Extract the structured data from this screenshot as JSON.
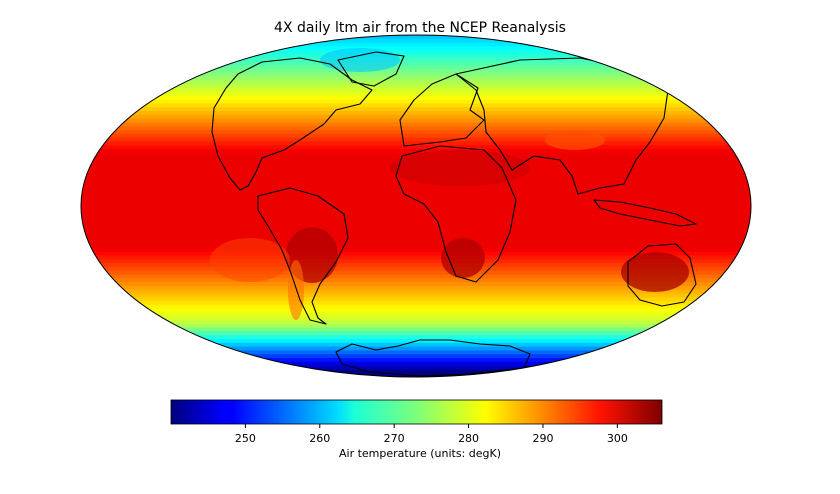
{
  "title": "4X daily ltm air from the NCEP Reanalysis",
  "colorbar": {
    "label": "Air temperature (units: degK)",
    "min": 240,
    "max": 306,
    "ticks": [
      "250",
      "260",
      "270",
      "280",
      "290",
      "300"
    ],
    "tick_values": [
      250,
      260,
      270,
      280,
      290,
      300
    ],
    "colormap": "jet"
  },
  "map": {
    "projection": "Mollweide",
    "variable": "air temperature",
    "colors": {
      "coast": "#000000",
      "outline": "#000000"
    }
  }
}
